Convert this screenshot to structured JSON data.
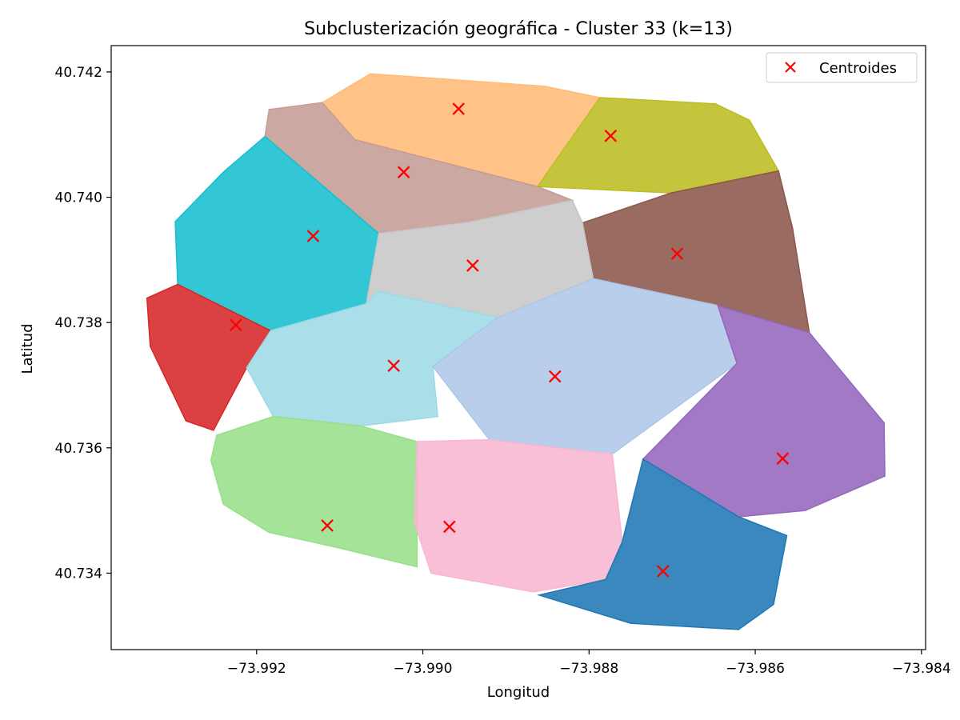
{
  "chart_data": {
    "type": "scatter",
    "title": "Subclusterización geográfica - Cluster 33 (k=13)",
    "xlabel": "Longitud",
    "ylabel": "Latitud",
    "xlim": [
      -73.99375,
      -73.98395
    ],
    "ylim": [
      40.73278,
      40.74242
    ],
    "xticks": [
      -73.992,
      -73.99,
      -73.988,
      -73.986,
      -73.984
    ],
    "xtick_labels": [
      "−73.992",
      "−73.990",
      "−73.988",
      "−73.986",
      "−73.984"
    ],
    "yticks": [
      40.734,
      40.736,
      40.738,
      40.74,
      40.742
    ],
    "ytick_labels": [
      "40.734",
      "40.736",
      "40.738",
      "40.740",
      "40.742"
    ],
    "grid": false,
    "legend": {
      "position": "top-right",
      "entries": [
        "Centroides"
      ]
    },
    "centroid_color": "#ff0000",
    "clusters": [
      {
        "color": "#ffbb78",
        "centroid": [
          -73.98957,
          40.74141
        ],
        "region": [
          [
            -73.99063,
            40.74197
          ],
          [
            -73.98853,
            40.74177
          ],
          [
            -73.98787,
            40.74159
          ],
          [
            -73.98862,
            40.74017
          ],
          [
            -73.99082,
            40.74092
          ],
          [
            -73.99121,
            40.74151
          ]
        ]
      },
      {
        "color": "#bcbd22",
        "centroid": [
          -73.98774,
          40.74098
        ],
        "region": [
          [
            -73.98787,
            40.74159
          ],
          [
            -73.98648,
            40.74149
          ],
          [
            -73.98607,
            40.74123
          ],
          [
            -73.98572,
            40.74042
          ],
          [
            -73.98701,
            40.74007
          ],
          [
            -73.98862,
            40.74017
          ]
        ]
      },
      {
        "color": "#c49c94",
        "centroid": [
          -73.99023,
          40.7404
        ],
        "region": [
          [
            -73.99121,
            40.74151
          ],
          [
            -73.99082,
            40.74092
          ],
          [
            -73.98862,
            40.74017
          ],
          [
            -73.9882,
            40.73995
          ],
          [
            -73.98945,
            40.7396
          ],
          [
            -73.99053,
            40.73942
          ],
          [
            -73.9919,
            40.74097
          ],
          [
            -73.99185,
            40.7414
          ]
        ]
      },
      {
        "color": "#17becf",
        "centroid": [
          -73.99132,
          40.73938
        ],
        "region": [
          [
            -73.9919,
            40.74097
          ],
          [
            -73.99053,
            40.73942
          ],
          [
            -73.99068,
            40.7383
          ],
          [
            -73.99183,
            40.73787
          ],
          [
            -73.99295,
            40.73861
          ],
          [
            -73.99298,
            40.73961
          ],
          [
            -73.9924,
            40.7404
          ]
        ]
      },
      {
        "color": "#8c564b",
        "centroid": [
          -73.98694,
          40.7391
        ],
        "region": [
          [
            -73.98572,
            40.74042
          ],
          [
            -73.98701,
            40.74007
          ],
          [
            -73.98808,
            40.73959
          ],
          [
            -73.98795,
            40.7387
          ],
          [
            -73.98645,
            40.73827
          ],
          [
            -73.98535,
            40.73784
          ],
          [
            -73.98555,
            40.7395
          ]
        ]
      },
      {
        "color": "#c7c7c7",
        "centroid": [
          -73.9894,
          40.73891
        ],
        "region": [
          [
            -73.98945,
            40.7396
          ],
          [
            -73.9882,
            40.73995
          ],
          [
            -73.98808,
            40.73959
          ],
          [
            -73.98795,
            40.7387
          ],
          [
            -73.9891,
            40.73808
          ],
          [
            -73.99054,
            40.7385
          ],
          [
            -73.99068,
            40.7383
          ],
          [
            -73.99053,
            40.73942
          ]
        ]
      },
      {
        "color": "#d62728",
        "centroid": [
          -73.99225,
          40.73796
        ],
        "region": [
          [
            -73.99295,
            40.73861
          ],
          [
            -73.99183,
            40.73787
          ],
          [
            -73.99212,
            40.73728
          ],
          [
            -73.99252,
            40.73628
          ],
          [
            -73.99285,
            40.73643
          ],
          [
            -73.99328,
            40.73762
          ],
          [
            -73.99332,
            40.73839
          ]
        ]
      },
      {
        "color": "#9edae5",
        "centroid": [
          -73.99035,
          40.73731
        ],
        "region": [
          [
            -73.99183,
            40.73787
          ],
          [
            -73.99068,
            40.7383
          ],
          [
            -73.99054,
            40.7385
          ],
          [
            -73.9891,
            40.73808
          ],
          [
            -73.98988,
            40.7373
          ],
          [
            -73.98982,
            40.7365
          ],
          [
            -73.99075,
            40.73635
          ],
          [
            -73.9918,
            40.7365
          ],
          [
            -73.99212,
            40.73728
          ]
        ]
      },
      {
        "color": "#aec7e8",
        "centroid": [
          -73.98841,
          40.73714
        ],
        "region": [
          [
            -73.9891,
            40.73808
          ],
          [
            -73.98795,
            40.7387
          ],
          [
            -73.98645,
            40.73827
          ],
          [
            -73.98622,
            40.73735
          ],
          [
            -73.98772,
            40.7359
          ],
          [
            -73.9892,
            40.73613
          ],
          [
            -73.98988,
            40.7373
          ]
        ]
      },
      {
        "color": "#9467bd",
        "centroid": [
          -73.98567,
          40.73583
        ],
        "region": [
          [
            -73.98535,
            40.73784
          ],
          [
            -73.98645,
            40.73827
          ],
          [
            -73.98622,
            40.73735
          ],
          [
            -73.98735,
            40.73582
          ],
          [
            -73.9862,
            40.7349
          ],
          [
            -73.9854,
            40.735
          ],
          [
            -73.98444,
            40.73555
          ],
          [
            -73.98445,
            40.7364
          ]
        ]
      },
      {
        "color": "#98df8a",
        "centroid": [
          -73.99115,
          40.73476
        ],
        "region": [
          [
            -73.99248,
            40.7362
          ],
          [
            -73.9918,
            40.7365
          ],
          [
            -73.99075,
            40.73635
          ],
          [
            -73.99007,
            40.7361
          ],
          [
            -73.99007,
            40.7341
          ],
          [
            -73.991,
            40.7344
          ],
          [
            -73.99185,
            40.73465
          ],
          [
            -73.9924,
            40.7351
          ],
          [
            -73.99255,
            40.7358
          ]
        ]
      },
      {
        "color": "#f7b6d2",
        "centroid": [
          -73.98968,
          40.73474
        ],
        "region": [
          [
            -73.99007,
            40.7361
          ],
          [
            -73.9892,
            40.73613
          ],
          [
            -73.98772,
            40.7359
          ],
          [
            -73.9876,
            40.7345
          ],
          [
            -73.9878,
            40.7339
          ],
          [
            -73.98867,
            40.7337
          ],
          [
            -73.9899,
            40.734
          ],
          [
            -73.9901,
            40.7348
          ]
        ]
      },
      {
        "color": "#1f77b4",
        "centroid": [
          -73.98711,
          40.73403
        ],
        "region": [
          [
            -73.98735,
            40.73582
          ],
          [
            -73.9876,
            40.7345
          ],
          [
            -73.9878,
            40.7339
          ],
          [
            -73.9886,
            40.73365
          ],
          [
            -73.9875,
            40.7332
          ],
          [
            -73.9862,
            40.7331
          ],
          [
            -73.98578,
            40.7335
          ],
          [
            -73.98562,
            40.7346
          ],
          [
            -73.9862,
            40.7349
          ]
        ]
      }
    ]
  }
}
